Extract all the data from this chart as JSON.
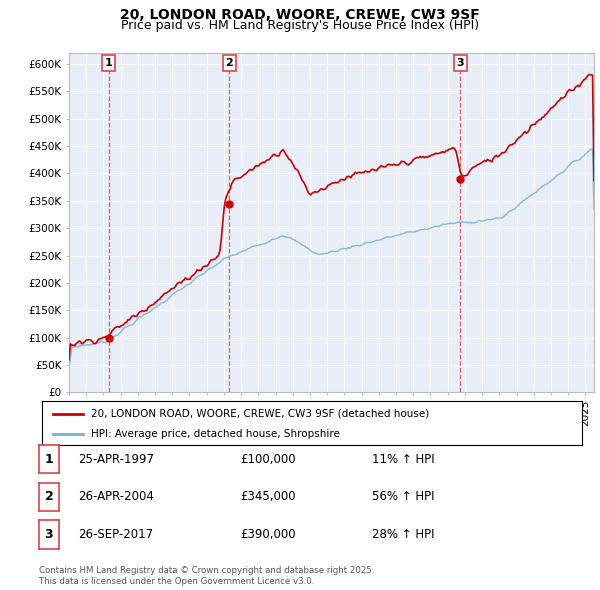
{
  "title": "20, LONDON ROAD, WOORE, CREWE, CW3 9SF",
  "subtitle": "Price paid vs. HM Land Registry's House Price Index (HPI)",
  "ylim": [
    0,
    620000
  ],
  "yticks": [
    0,
    50000,
    100000,
    150000,
    200000,
    250000,
    300000,
    350000,
    400000,
    450000,
    500000,
    550000,
    600000
  ],
  "ytick_labels": [
    "£0",
    "£50K",
    "£100K",
    "£150K",
    "£200K",
    "£250K",
    "£300K",
    "£350K",
    "£400K",
    "£450K",
    "£500K",
    "£550K",
    "£600K"
  ],
  "background_color": "#ffffff",
  "plot_bg_color": "#e8eef8",
  "grid_color": "#ffffff",
  "line_color_price": "#cc0000",
  "line_color_hpi": "#7ab0d4",
  "sale_marker_color": "#cc0000",
  "sale_years": [
    1997.31,
    2004.32,
    2017.74
  ],
  "sale_prices": [
    100000,
    345000,
    390000
  ],
  "sale_labels": [
    "1",
    "2",
    "3"
  ],
  "vline_color": "#dd4444",
  "legend_price_label": "20, LONDON ROAD, WOORE, CREWE, CW3 9SF (detached house)",
  "legend_hpi_label": "HPI: Average price, detached house, Shropshire",
  "table_rows": [
    [
      "1",
      "25-APR-1997",
      "£100,000",
      "11% ↑ HPI"
    ],
    [
      "2",
      "26-APR-2004",
      "£345,000",
      "56% ↑ HPI"
    ],
    [
      "3",
      "26-SEP-2017",
      "£390,000",
      "28% ↑ HPI"
    ]
  ],
  "footnote": "Contains HM Land Registry data © Crown copyright and database right 2025.\nThis data is licensed under the Open Government Licence v3.0.",
  "xlim_start": 1995.0,
  "xlim_end": 2025.5,
  "title_fontsize": 10,
  "subtitle_fontsize": 9
}
